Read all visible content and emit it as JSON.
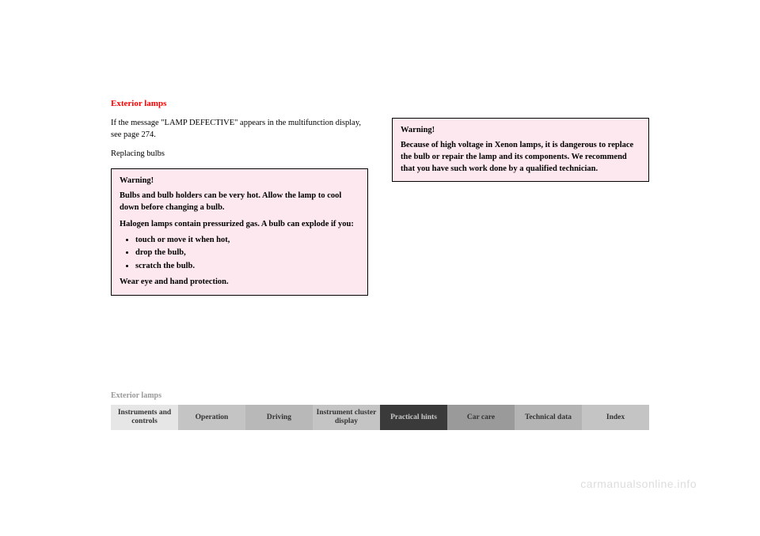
{
  "section_title": "Exterior lamps",
  "left_col": {
    "intro": "If the message \"LAMP DEFECTIVE\" appears in the multifunction display, see page 274.",
    "subtitle": "Replacing bulbs",
    "warning": {
      "heading": "Warning!",
      "p1": "Bulbs and bulb holders can be very hot. Allow the lamp to cool down before changing a bulb.",
      "p2": "Halogen lamps contain pressurized gas. A bulb can explode if you:",
      "b1": "touch or move it when hot,",
      "b2": "drop the bulb,",
      "b3": "scratch the bulb.",
      "p3": "Wear eye and hand protection."
    }
  },
  "right_col": {
    "warning": {
      "heading": "Warning!",
      "p1": "Because of high voltage in Xenon lamps, it is dangerous to replace the bulb or repair the lamp and its components. We recommend that you have such work done by a qualified technician."
    }
  },
  "footer": {
    "breadcrumb": "Exterior lamps",
    "tabs": {
      "t1": "Instruments and controls",
      "t2": "Operation",
      "t3": "Driving",
      "t4": "Instrument cluster display",
      "t5": "Practical hints",
      "t6": "Car care",
      "t7": "Technical data",
      "t8": "Index"
    }
  },
  "watermark": "carmanualsonline.info",
  "colors": {
    "title": "#ff0000",
    "warning_bg": "#fce8ee",
    "active_tab_bg": "#3a3a3a",
    "watermark": "#dddddd"
  }
}
